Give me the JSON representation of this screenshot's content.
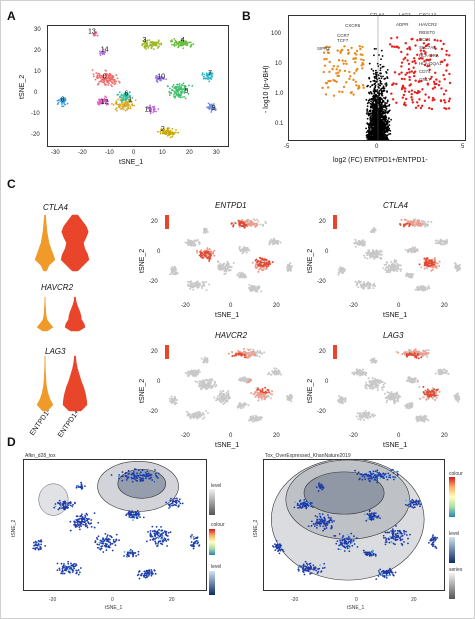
{
  "panels": {
    "A": {
      "label": "A",
      "xlabel": "tSNE_1",
      "ylabel": "tSNE_2",
      "xticks": [
        "-30",
        "-20",
        "-10",
        "0",
        "10",
        "20",
        "30"
      ],
      "yticks": [
        "30",
        "20",
        "10",
        "0",
        "-10",
        "-20"
      ],
      "clusters": [
        "0",
        "1",
        "2",
        "3",
        "4",
        "5",
        "6",
        "7",
        "8",
        "9",
        "10",
        "11",
        "12",
        "13",
        "14"
      ]
    },
    "B": {
      "label": "B",
      "xlabel": "log2 (FC) ENTPD1+/ENTPD1-",
      "ylabel": "- log10 (p-vBH)",
      "xticks": [
        "-5",
        "0",
        "5"
      ],
      "yticks": [
        "100",
        "10",
        "1.0",
        "0.1"
      ],
      "genes_right": [
        "CTLA4",
        "LAG3",
        "CXCL13",
        "ADPR",
        "HAVCR2",
        "RBSIT0",
        "BCL4",
        "SLC7A4",
        "HLA-DRA",
        "HLA-DQA1",
        "CD74",
        "GNLY"
      ],
      "genes_left": [
        "CXCR6",
        "CCR7",
        "TCF7",
        "SIPR1"
      ]
    },
    "C": {
      "label": "C",
      "violins": [
        {
          "gene": "CTLA4"
        },
        {
          "gene": "HAVCR2"
        },
        {
          "gene": "LAG3"
        }
      ],
      "violin_groups": [
        "ENTPD1-",
        "ENTPD1+"
      ],
      "tsne_titles": [
        "ENTPD1",
        "CTLA4",
        "HAVCR2",
        "LAG3"
      ],
      "xlabel": "tSNE_1",
      "ylabel": "tSNE_2",
      "xticks": [
        "-20",
        "0",
        "20"
      ],
      "yticks": [
        "20",
        "0",
        "-20"
      ]
    },
    "D": {
      "label": "D",
      "left_title": "Afkn_d28_tox",
      "right_title": "Tox_OverExpressed_KhanNature2019",
      "xlabel": "tSNE_1",
      "ylabel": "tSNE_2",
      "xticks": [
        "-20",
        "0",
        "20"
      ],
      "legend_left": [
        "level",
        "colour",
        "level"
      ],
      "legend_right": [
        "colour",
        "level",
        "series"
      ]
    }
  }
}
